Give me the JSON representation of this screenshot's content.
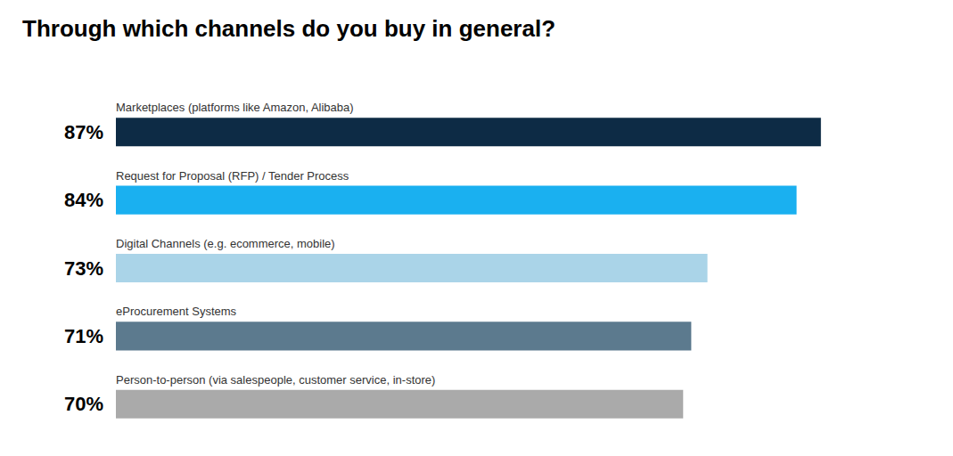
{
  "chart_data": {
    "type": "bar",
    "orientation": "horizontal",
    "title": "Through which channels do you buy in general?",
    "categories": [
      "Marketplaces (platforms like Amazon, Alibaba)",
      "Request for Proposal (RFP) / Tender Process",
      "Digital Channels (e.g. ecommerce, mobile)",
      "eProcurement Systems",
      "Person-to-person (via salespeople, customer service, in-store)"
    ],
    "values": [
      87,
      84,
      73,
      71,
      70
    ],
    "value_labels": [
      "87%",
      "84%",
      "73%",
      "71%",
      "70%"
    ],
    "colors": [
      "#0d2b45",
      "#1ab0f0",
      "#aad4e8",
      "#5c7a8e",
      "#aaaaaa"
    ],
    "xlim": [
      0,
      100
    ],
    "data_labels": true,
    "tick_labels": false,
    "grid": false
  }
}
